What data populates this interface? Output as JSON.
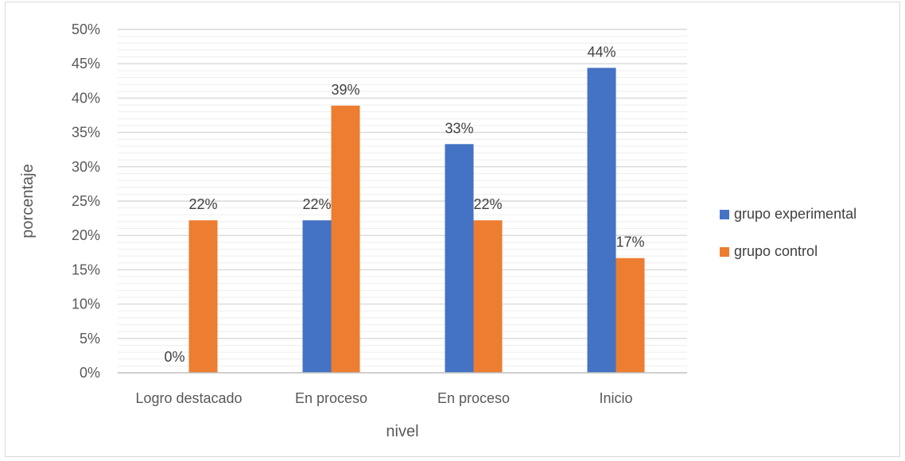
{
  "colors": {
    "grupo_experimental": "#4472C4",
    "grupo_control": "#ED7D31",
    "grid_major": "#d9d9d9",
    "grid_minor": "#eeeeee",
    "text": "#595959"
  },
  "chart_data": {
    "type": "bar",
    "title": "",
    "xlabel": "nivel",
    "ylabel": "porcentaje",
    "ylim": [
      0,
      50
    ],
    "y_ticks": [
      "0%",
      "5%",
      "10%",
      "15%",
      "20%",
      "25%",
      "30%",
      "35%",
      "40%",
      "45%",
      "50%"
    ],
    "grid": true,
    "legend_position": "right",
    "categories": [
      "Logro destacado",
      "En proceso",
      "En proceso",
      "Inicio"
    ],
    "series": [
      {
        "name": "grupo experimental",
        "color": "#4472C4",
        "values": [
          0,
          22.2,
          33.3,
          44.4
        ],
        "labels": [
          "0%",
          "22%",
          "33%",
          "44%"
        ]
      },
      {
        "name": "grupo control",
        "color": "#ED7D31",
        "values": [
          22.2,
          38.9,
          22.2,
          16.7
        ],
        "labels": [
          "22%",
          "39%",
          "22%",
          "17%"
        ]
      }
    ]
  }
}
